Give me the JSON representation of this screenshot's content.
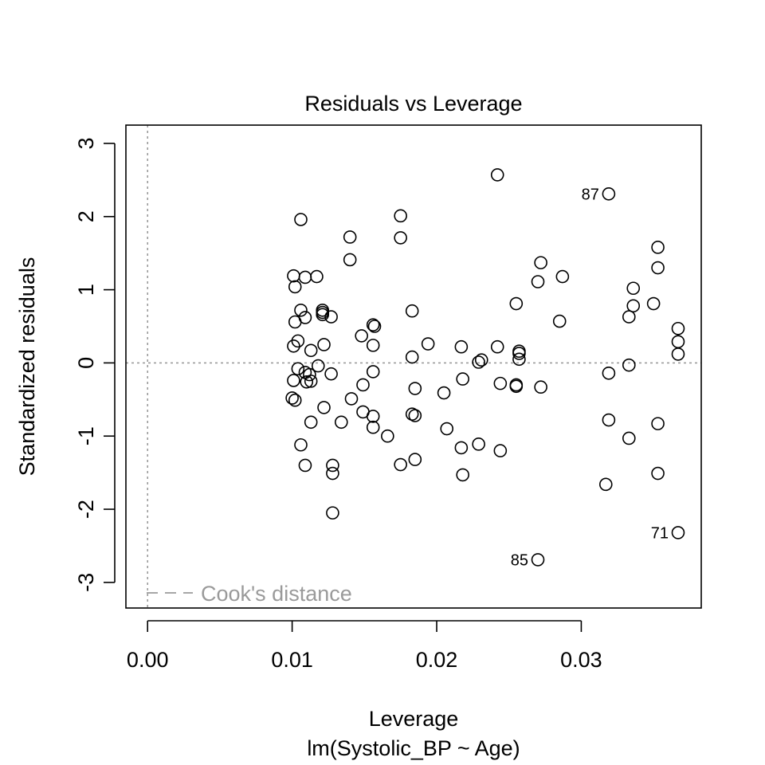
{
  "chart_data": {
    "type": "scatter",
    "title": "Residuals vs Leverage",
    "xlabel": "Leverage",
    "xsublabel": "lm(Systolic_BP ~ Age)",
    "ylabel": "Standardized residuals",
    "xlim": [
      -0.0015,
      0.0383
    ],
    "ylim": [
      -3.35,
      3.25
    ],
    "xticks": [
      0.0,
      0.01,
      0.02,
      0.03
    ],
    "xtick_labels": [
      "0.00",
      "0.01",
      "0.02",
      "0.03"
    ],
    "yticks": [
      -3,
      -2,
      -1,
      0,
      1,
      2,
      3
    ],
    "ytick_labels": [
      "-3",
      "-2",
      "-1",
      "0",
      "1",
      "2",
      "3"
    ],
    "reference_lines": {
      "h": 0,
      "v": 0,
      "style": "dotted",
      "color": "#9a9a9a"
    },
    "legend": {
      "position": "bottom-left",
      "label": "Cook's distance",
      "style": "dashed",
      "color": "#9a9a9a"
    },
    "point_style": {
      "shape": "open-circle",
      "color": "#000000"
    },
    "points": [
      {
        "x": 0.0101,
        "y": 1.19
      },
      {
        "x": 0.0101,
        "y": 0.23
      },
      {
        "x": 0.0101,
        "y": -0.24
      },
      {
        "x": 0.01,
        "y": -0.48
      },
      {
        "x": 0.0102,
        "y": -0.51
      },
      {
        "x": 0.0102,
        "y": 1.04
      },
      {
        "x": 0.0102,
        "y": 0.56
      },
      {
        "x": 0.0104,
        "y": 0.3
      },
      {
        "x": 0.0104,
        "y": -0.08
      },
      {
        "x": 0.0106,
        "y": 1.96
      },
      {
        "x": 0.0106,
        "y": 0.72
      },
      {
        "x": 0.0106,
        "y": -1.12
      },
      {
        "x": 0.0109,
        "y": 1.17
      },
      {
        "x": 0.0109,
        "y": 0.62
      },
      {
        "x": 0.0109,
        "y": -0.13
      },
      {
        "x": 0.011,
        "y": -0.26
      },
      {
        "x": 0.0109,
        "y": -1.4
      },
      {
        "x": 0.0112,
        "y": -0.16
      },
      {
        "x": 0.0113,
        "y": 0.17
      },
      {
        "x": 0.0113,
        "y": -0.25
      },
      {
        "x": 0.0113,
        "y": -0.81
      },
      {
        "x": 0.0117,
        "y": 1.18
      },
      {
        "x": 0.0118,
        "y": -0.04
      },
      {
        "x": 0.0121,
        "y": 0.72
      },
      {
        "x": 0.0121,
        "y": 0.69
      },
      {
        "x": 0.0121,
        "y": 0.66
      },
      {
        "x": 0.0122,
        "y": 0.25
      },
      {
        "x": 0.0122,
        "y": -0.61
      },
      {
        "x": 0.0127,
        "y": 0.63
      },
      {
        "x": 0.0127,
        "y": -0.15
      },
      {
        "x": 0.0128,
        "y": -1.4
      },
      {
        "x": 0.0128,
        "y": -1.51
      },
      {
        "x": 0.0128,
        "y": -2.05
      },
      {
        "x": 0.0134,
        "y": -0.81
      },
      {
        "x": 0.014,
        "y": 1.72
      },
      {
        "x": 0.014,
        "y": 1.41
      },
      {
        "x": 0.0141,
        "y": -0.49
      },
      {
        "x": 0.0148,
        "y": 0.37
      },
      {
        "x": 0.0149,
        "y": -0.3
      },
      {
        "x": 0.0149,
        "y": -0.67
      },
      {
        "x": 0.0156,
        "y": 0.52
      },
      {
        "x": 0.0157,
        "y": 0.5
      },
      {
        "x": 0.0156,
        "y": 0.24
      },
      {
        "x": 0.0156,
        "y": -0.12
      },
      {
        "x": 0.0156,
        "y": -0.73
      },
      {
        "x": 0.0156,
        "y": -0.88
      },
      {
        "x": 0.0166,
        "y": -1.0
      },
      {
        "x": 0.0175,
        "y": 2.01
      },
      {
        "x": 0.0175,
        "y": 1.71
      },
      {
        "x": 0.0175,
        "y": -1.39
      },
      {
        "x": 0.0183,
        "y": 0.71
      },
      {
        "x": 0.0183,
        "y": 0.08
      },
      {
        "x": 0.0183,
        "y": -0.7
      },
      {
        "x": 0.0185,
        "y": -0.72
      },
      {
        "x": 0.0185,
        "y": -0.35
      },
      {
        "x": 0.0185,
        "y": -1.32
      },
      {
        "x": 0.0194,
        "y": 0.26
      },
      {
        "x": 0.0205,
        "y": -0.41
      },
      {
        "x": 0.0207,
        "y": -0.9
      },
      {
        "x": 0.0217,
        "y": 0.22
      },
      {
        "x": 0.0218,
        "y": -0.22
      },
      {
        "x": 0.0217,
        "y": -1.16
      },
      {
        "x": 0.0218,
        "y": -1.53
      },
      {
        "x": 0.0229,
        "y": 0.01
      },
      {
        "x": 0.0231,
        "y": 0.04
      },
      {
        "x": 0.0229,
        "y": -1.11
      },
      {
        "x": 0.0242,
        "y": 2.57
      },
      {
        "x": 0.0242,
        "y": 0.22
      },
      {
        "x": 0.0244,
        "y": -0.28
      },
      {
        "x": 0.0244,
        "y": -1.2
      },
      {
        "x": 0.0255,
        "y": 0.81
      },
      {
        "x": 0.0255,
        "y": -0.3
      },
      {
        "x": 0.0255,
        "y": -0.32
      },
      {
        "x": 0.0257,
        "y": 0.16
      },
      {
        "x": 0.0257,
        "y": 0.13
      },
      {
        "x": 0.0257,
        "y": 0.05
      },
      {
        "x": 0.027,
        "y": 1.11
      },
      {
        "x": 0.0272,
        "y": 1.37
      },
      {
        "x": 0.0272,
        "y": -0.33
      },
      {
        "x": 0.027,
        "y": -2.69,
        "label": "85"
      },
      {
        "x": 0.0285,
        "y": 0.57
      },
      {
        "x": 0.0287,
        "y": 1.18
      },
      {
        "x": 0.0319,
        "y": 2.31,
        "label": "87"
      },
      {
        "x": 0.0319,
        "y": -0.14
      },
      {
        "x": 0.0319,
        "y": -0.78
      },
      {
        "x": 0.0317,
        "y": -1.66
      },
      {
        "x": 0.0333,
        "y": 0.63
      },
      {
        "x": 0.0333,
        "y": -0.03
      },
      {
        "x": 0.0333,
        "y": -1.03
      },
      {
        "x": 0.0336,
        "y": 1.02
      },
      {
        "x": 0.0336,
        "y": 0.78
      },
      {
        "x": 0.035,
        "y": 0.81
      },
      {
        "x": 0.0353,
        "y": 1.58
      },
      {
        "x": 0.0353,
        "y": 1.3
      },
      {
        "x": 0.0353,
        "y": -0.83
      },
      {
        "x": 0.0353,
        "y": -1.51
      },
      {
        "x": 0.0367,
        "y": 0.47
      },
      {
        "x": 0.0367,
        "y": 0.29
      },
      {
        "x": 0.0367,
        "y": 0.12
      },
      {
        "x": 0.0367,
        "y": -2.32,
        "label": "71"
      }
    ]
  }
}
